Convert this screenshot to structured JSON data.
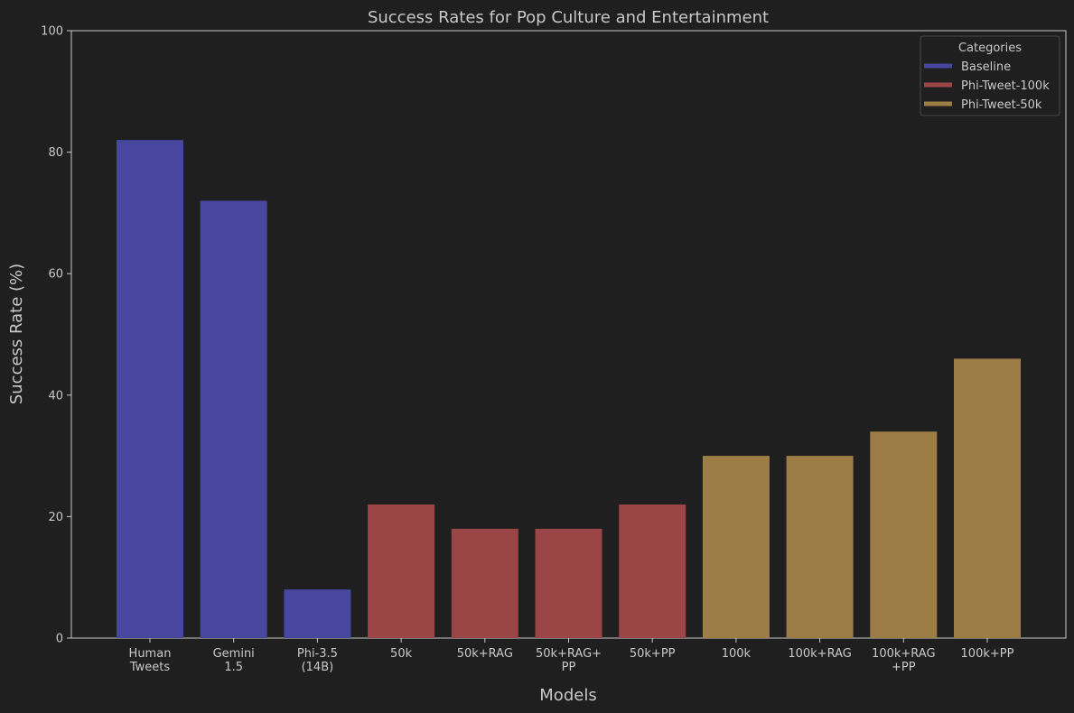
{
  "chart_data": {
    "type": "bar",
    "title": "Success Rates for Pop Culture and Entertainment",
    "xlabel": "Models",
    "ylabel": "Success Rate (%)",
    "ylim": [
      0,
      100
    ],
    "yticks": [
      "0",
      "20",
      "40",
      "60",
      "80",
      "100"
    ],
    "grid": false,
    "legend": {
      "title": "Categories",
      "placement": "top-right",
      "entries": [
        {
          "name": "Baseline",
          "color": "#4747a0"
        },
        {
          "name": "Phi-Tweet-100k",
          "color": "#9b4546"
        },
        {
          "name": "Phi-Tweet-50k",
          "color": "#9b7d45"
        }
      ]
    },
    "bars": [
      {
        "label": [
          "Human",
          "Tweets"
        ],
        "value": 82,
        "category": 0
      },
      {
        "label": [
          "Gemini",
          "1.5"
        ],
        "value": 72,
        "category": 0
      },
      {
        "label": [
          "Phi-3.5",
          "(14B)"
        ],
        "value": 8,
        "category": 0
      },
      {
        "label": [
          "50k"
        ],
        "value": 22,
        "category": 1
      },
      {
        "label": [
          "50k+RAG"
        ],
        "value": 18,
        "category": 1
      },
      {
        "label": [
          "50k+RAG+",
          "PP"
        ],
        "value": 18,
        "category": 1
      },
      {
        "label": [
          "50k+PP"
        ],
        "value": 22,
        "category": 1
      },
      {
        "label": [
          "100k"
        ],
        "value": 30,
        "category": 2
      },
      {
        "label": [
          "100k+RAG"
        ],
        "value": 30,
        "category": 2
      },
      {
        "label": [
          "100k+RAG",
          "+PP"
        ],
        "value": 34,
        "category": 2
      },
      {
        "label": [
          "100k+PP"
        ],
        "value": 46,
        "category": 2
      }
    ]
  },
  "colors": {
    "background": "#1f1f1f",
    "axis": "#c8c8c8",
    "text": "#c8c8c8"
  }
}
